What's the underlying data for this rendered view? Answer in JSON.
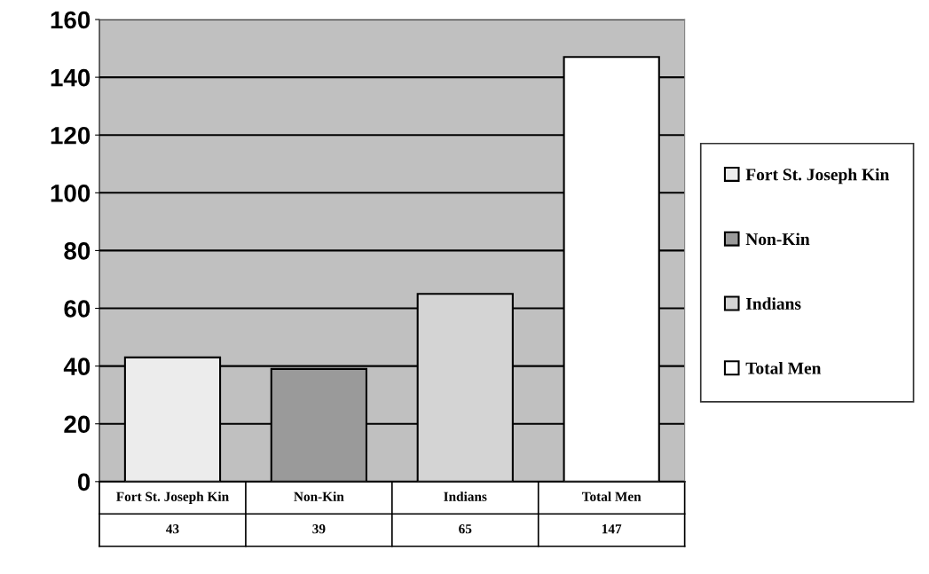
{
  "chart_data": {
    "type": "bar",
    "categories": [
      "Fort St. Joseph Kin",
      "Non-Kin",
      "Indians",
      "Total Men"
    ],
    "series": [
      {
        "name": "Fort St. Joseph Kin",
        "color": "#ececec",
        "values": [
          43,
          null,
          null,
          null
        ]
      },
      {
        "name": "Non-Kin",
        "color": "#9a9a9a",
        "values": [
          null,
          39,
          null,
          null
        ]
      },
      {
        "name": "Indians",
        "color": "#d4d4d4",
        "values": [
          null,
          null,
          65,
          null
        ]
      },
      {
        "name": "Total Men",
        "color": "#ffffff",
        "values": [
          null,
          null,
          null,
          147
        ]
      }
    ],
    "ylim": [
      0,
      160
    ],
    "yticks": [
      0,
      20,
      40,
      60,
      80,
      100,
      120,
      140,
      160
    ],
    "grid": "y",
    "legend": "right",
    "data_labels": true
  }
}
